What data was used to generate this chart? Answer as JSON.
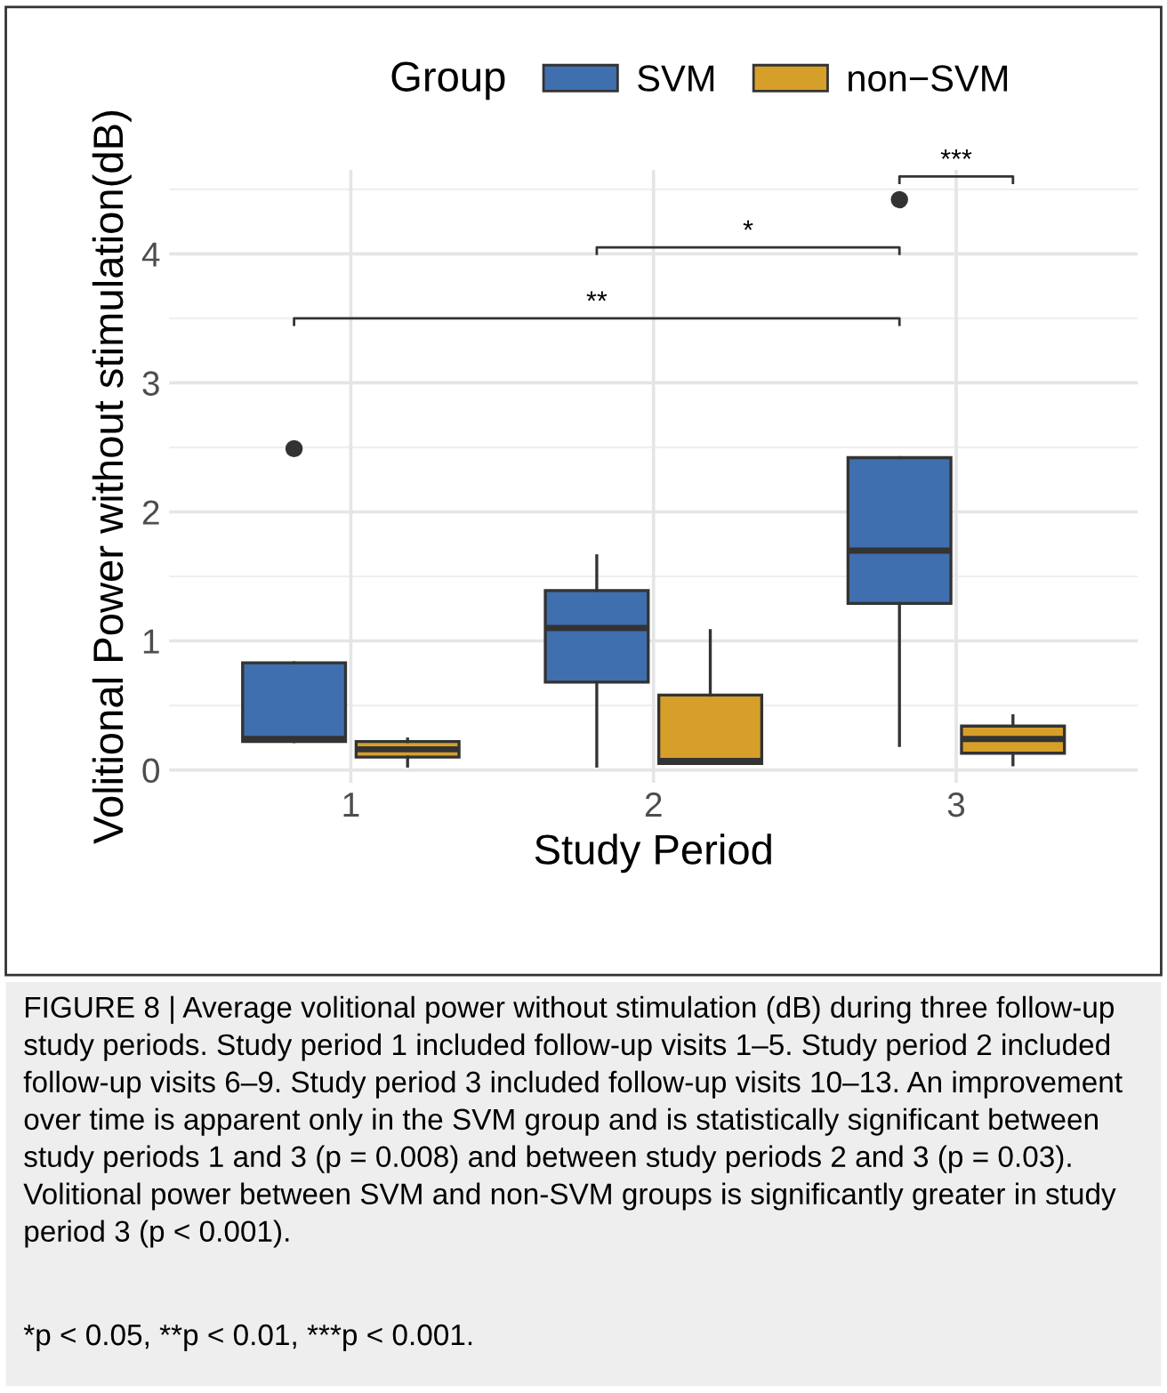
{
  "chart_data": {
    "type": "box",
    "xlabel": "Study Period",
    "ylabel": "Volitional Power without stimulation(dB)",
    "legend_title": "Group",
    "legend": "top",
    "grid": true,
    "categories": [
      "1",
      "2",
      "3"
    ],
    "ylim": [
      -0.1,
      4.65
    ],
    "yticks": [
      0,
      1,
      2,
      3,
      4
    ],
    "series": [
      {
        "name": "SVM",
        "color": "#3f6fae",
        "boxes": [
          {
            "low": 0.22,
            "q1": 0.22,
            "median": 0.24,
            "q3": 0.83,
            "high": 0.83,
            "outliers": [
              2.49
            ]
          },
          {
            "low": 0.03,
            "q1": 0.68,
            "median": 1.1,
            "q3": 1.39,
            "high": 1.66
          },
          {
            "low": 0.19,
            "q1": 1.29,
            "median": 1.7,
            "q3": 2.42,
            "high": 2.42,
            "outliers": [
              4.42
            ]
          }
        ]
      },
      {
        "name": "non−SVM",
        "color": "#d69f2a",
        "boxes": [
          {
            "low": 0.03,
            "q1": 0.1,
            "median": 0.16,
            "q3": 0.22,
            "high": 0.24
          },
          {
            "low": 0.05,
            "q1": 0.05,
            "median": 0.07,
            "q3": 0.58,
            "high": 1.08
          },
          {
            "low": 0.04,
            "q1": 0.13,
            "median": 0.24,
            "q3": 0.34,
            "high": 0.42
          }
        ]
      }
    ],
    "annotations": [
      "**",
      "*",
      "***",
      "FIGURE 8 | Average volitional power without stimulation (dB) during three follow-up study periods. Study period 1 included follow-up visits 1–5. Study period 2 included follow-up visits 6–9. Study period 3 included follow-up visits 10–13. An improvement over time is apparent only in the SVM group and is statistically significant between study periods 1 and 3 (p = 0.008) and between study periods 2 and 3 (p = 0.03). Volitional power between SVM and non-SVM groups is significantly greater in study period 3 (p < 0.001).",
      "*p < 0.05, **p < 0.01, ***p < 0.001."
    ]
  }
}
